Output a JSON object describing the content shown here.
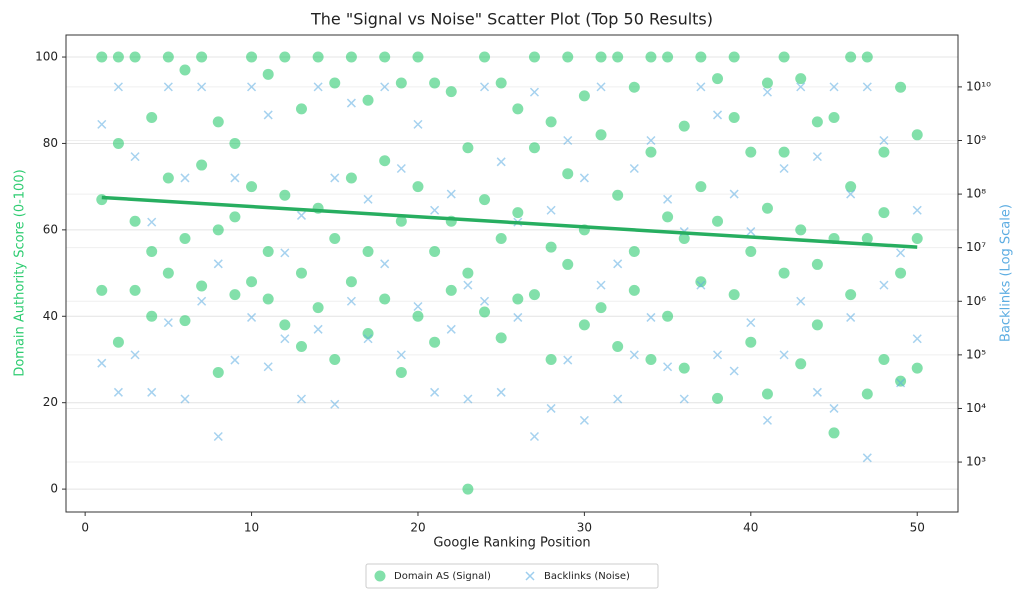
{
  "chart_data": {
    "type": "scatter",
    "title": "The \"Signal vs Noise\" Scatter Plot (Top 50 Results)",
    "x_label": "Google Ranking Position",
    "y_label": "Domain Authority Score (0-100)",
    "y2_label": "Backlinks (Log Scale)",
    "xlim": [
      -1.15,
      52.45
    ],
    "xticks": [
      0,
      10,
      20,
      30,
      40,
      50
    ],
    "ylim": [
      -5.3,
      105.1
    ],
    "yticks": [
      0,
      20,
      40,
      60,
      80,
      100
    ],
    "y2lim": [
      117,
      93000000000
    ],
    "y2_log": true,
    "y2ticks": [
      {
        "value": 1000,
        "label": "10³"
      },
      {
        "value": 10000,
        "label": "10⁴"
      },
      {
        "value": 100000,
        "label": "10⁵"
      },
      {
        "value": 1000000,
        "label": "10⁶"
      },
      {
        "value": 10000000,
        "label": "10⁷"
      },
      {
        "value": 100000000,
        "label": "10⁸"
      },
      {
        "value": 1000000000,
        "label": "10⁹"
      },
      {
        "value": 10000000000,
        "label": "10¹⁰"
      }
    ],
    "grid": true,
    "legend": "bottom",
    "series": [
      {
        "name": "Domain AS (Signal)",
        "color": "#2ecc71",
        "marker": "circle",
        "x": [
          1,
          1,
          1,
          2,
          2,
          2,
          3,
          3,
          3,
          4,
          4,
          4,
          5,
          5,
          5,
          6,
          6,
          6,
          7,
          7,
          7,
          8,
          8,
          8,
          9,
          9,
          9,
          10,
          10,
          10,
          11,
          11,
          11,
          12,
          12,
          12,
          13,
          13,
          13,
          14,
          14,
          14,
          15,
          15,
          15,
          16,
          16,
          16,
          17,
          17,
          17,
          18,
          18,
          18,
          19,
          19,
          19,
          20,
          20,
          20,
          21,
          21,
          21,
          22,
          22,
          22,
          23,
          23,
          23,
          24,
          24,
          24,
          25,
          25,
          25,
          26,
          26,
          26,
          27,
          27,
          27,
          28,
          28,
          28,
          29,
          29,
          29,
          30,
          30,
          30,
          31,
          31,
          31,
          32,
          32,
          32,
          33,
          33,
          33,
          34,
          34,
          34,
          35,
          35,
          35,
          36,
          36,
          36,
          37,
          37,
          37,
          38,
          38,
          38,
          39,
          39,
          39,
          40,
          40,
          40,
          41,
          41,
          41,
          42,
          42,
          42,
          43,
          43,
          43,
          44,
          44,
          44,
          45,
          45,
          45,
          46,
          46,
          46,
          47,
          47,
          47,
          48,
          48,
          48,
          49,
          49,
          49,
          50,
          50,
          50
        ],
        "values": [
          100,
          67,
          46,
          100,
          80,
          34,
          100,
          62,
          46,
          86,
          55,
          40,
          100,
          72,
          50,
          97,
          58,
          39,
          100,
          75,
          47,
          85,
          60,
          27,
          80,
          45,
          63,
          100,
          70,
          48,
          96,
          55,
          44,
          100,
          68,
          38,
          88,
          50,
          33,
          100,
          65,
          42,
          94,
          58,
          30,
          100,
          72,
          48,
          90,
          55,
          36,
          100,
          76,
          44,
          94,
          62,
          27,
          100,
          70,
          40,
          94,
          55,
          34,
          92,
          62,
          46,
          79,
          50,
          0,
          100,
          67,
          41,
          94,
          58,
          35,
          88,
          64,
          44,
          100,
          79,
          45,
          85,
          56,
          30,
          100,
          73,
          52,
          91,
          60,
          38,
          100,
          82,
          42,
          100,
          68,
          33,
          93,
          55,
          46,
          100,
          78,
          30,
          100,
          63,
          40,
          84,
          58,
          28,
          100,
          70,
          48,
          95,
          62,
          21,
          100,
          86,
          45,
          78,
          55,
          34,
          94,
          65,
          22,
          100,
          78,
          50,
          95,
          60,
          29,
          85,
          52,
          38,
          86,
          58,
          13,
          100,
          70,
          45,
          100,
          58,
          22,
          78,
          64,
          30,
          93,
          50,
          25,
          82,
          58,
          28
        ]
      },
      {
        "name": "Backlinks (Noise)",
        "color": "#5dade2",
        "marker": "x",
        "axis": "y2",
        "x": [
          1,
          1,
          2,
          2,
          3,
          3,
          4,
          4,
          5,
          5,
          6,
          6,
          7,
          7,
          8,
          8,
          9,
          9,
          10,
          10,
          11,
          11,
          12,
          12,
          13,
          13,
          14,
          14,
          15,
          15,
          16,
          16,
          17,
          17,
          18,
          18,
          19,
          19,
          20,
          20,
          21,
          21,
          22,
          22,
          23,
          23,
          24,
          24,
          25,
          25,
          26,
          26,
          27,
          27,
          28,
          28,
          29,
          29,
          30,
          30,
          31,
          31,
          32,
          32,
          33,
          33,
          34,
          34,
          35,
          35,
          36,
          36,
          37,
          37,
          38,
          38,
          39,
          39,
          40,
          40,
          41,
          41,
          42,
          42,
          43,
          43,
          44,
          44,
          45,
          45,
          46,
          46,
          47,
          47,
          48,
          48,
          49,
          49,
          50,
          50
        ],
        "values": [
          2000000000.0,
          70000,
          10000000000.0,
          20000,
          500000000.0,
          100000,
          30000000.0,
          20000,
          10000000000.0,
          400000,
          200000000.0,
          15000,
          10000000000.0,
          1000000.0,
          5000000.0,
          3000,
          200000000.0,
          80000,
          10000000000.0,
          500000,
          3000000000.0,
          60000,
          8000000.0,
          200000,
          40000000.0,
          15000,
          10000000000.0,
          300000,
          200000000.0,
          12000,
          5000000000.0,
          1000000.0,
          80000000.0,
          200000,
          10000000000.0,
          5000000.0,
          300000000.0,
          100000,
          2000000000.0,
          800000,
          50000000.0,
          20000,
          100000000.0,
          300000,
          2000000.0,
          15000,
          10000000000.0,
          1000000.0,
          400000000.0,
          20000,
          30000000.0,
          500000,
          8000000000.0,
          3000,
          50000000.0,
          10000,
          1000000000.0,
          80000,
          200000000.0,
          6000,
          10000000000.0,
          2000000.0,
          5000000.0,
          15000,
          300000000.0,
          100000,
          1000000000.0,
          500000,
          80000000.0,
          60000,
          20000000.0,
          15000,
          10000000000.0,
          2000000.0,
          3000000000.0,
          100000,
          100000000.0,
          50000,
          20000000.0,
          400000,
          8000000000.0,
          6000,
          300000000.0,
          100000,
          10000000000.0,
          1000000.0,
          500000000.0,
          20000,
          10000000000.0,
          10000,
          100000000.0,
          500000,
          10000000000.0,
          1200,
          1000000000.0,
          2000000.0,
          8000000.0,
          30000,
          50000000.0,
          200000
        ]
      }
    ],
    "trend": {
      "color": "#27ae60",
      "x": [
        1,
        50
      ],
      "values": [
        67.5,
        56
      ]
    }
  }
}
